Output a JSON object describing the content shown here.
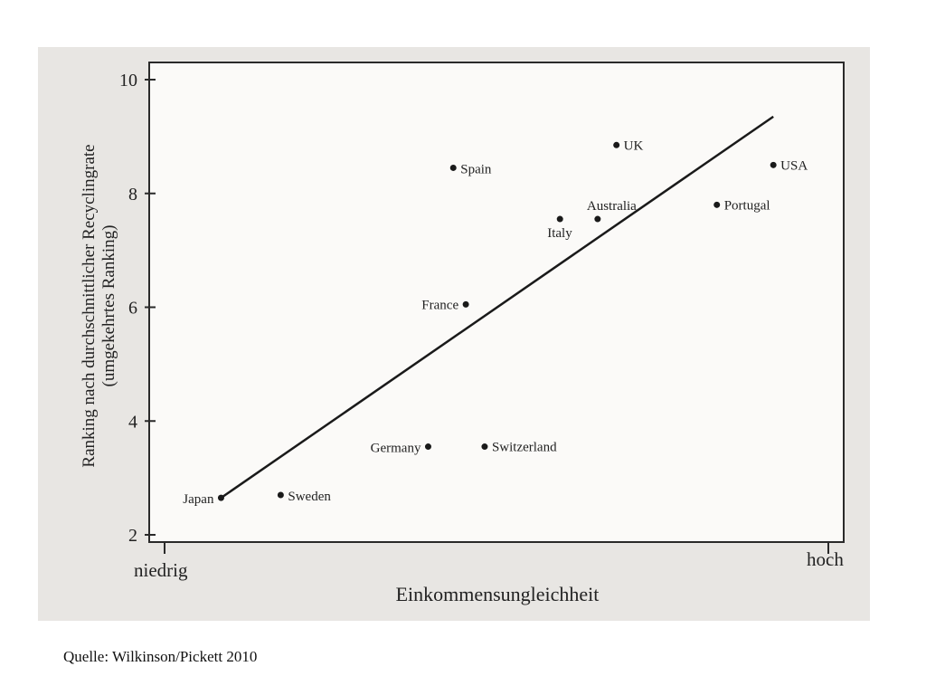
{
  "chart_data": {
    "type": "scatter",
    "xlabel": "Einkommensungleichheit",
    "ylabel_line1": "Ranking nach durchschnittlicher Recyclingrate",
    "ylabel_line2": "(umgekehrtes Ranking)",
    "x_tick_labels": {
      "low": "niedrig",
      "high": "hoch"
    },
    "y_ticks": [
      "2",
      "4",
      "6",
      "8",
      "10"
    ],
    "ylim": [
      2,
      10
    ],
    "xlim": [
      0,
      10
    ],
    "points": [
      {
        "label": "Japan",
        "x": 0.9,
        "y": 2.65
      },
      {
        "label": "Sweden",
        "x": 1.85,
        "y": 2.7
      },
      {
        "label": "Germany",
        "x": 4.2,
        "y": 3.55
      },
      {
        "label": "Switzerland",
        "x": 5.1,
        "y": 3.55
      },
      {
        "label": "France",
        "x": 4.8,
        "y": 6.05
      },
      {
        "label": "Italy",
        "x": 6.3,
        "y": 7.55
      },
      {
        "label": "Australia",
        "x": 6.9,
        "y": 7.55
      },
      {
        "label": "Spain",
        "x": 4.6,
        "y": 8.45
      },
      {
        "label": "UK",
        "x": 7.2,
        "y": 8.85
      },
      {
        "label": "Portugal",
        "x": 8.8,
        "y": 7.8
      },
      {
        "label": "USA",
        "x": 9.7,
        "y": 8.5
      }
    ],
    "trendline": {
      "x": [
        0.9,
        9.7
      ],
      "y": [
        2.65,
        9.35
      ]
    },
    "grid": false,
    "legend": "none"
  },
  "caption": "Quelle: Wilkinson/Pickett 2010"
}
